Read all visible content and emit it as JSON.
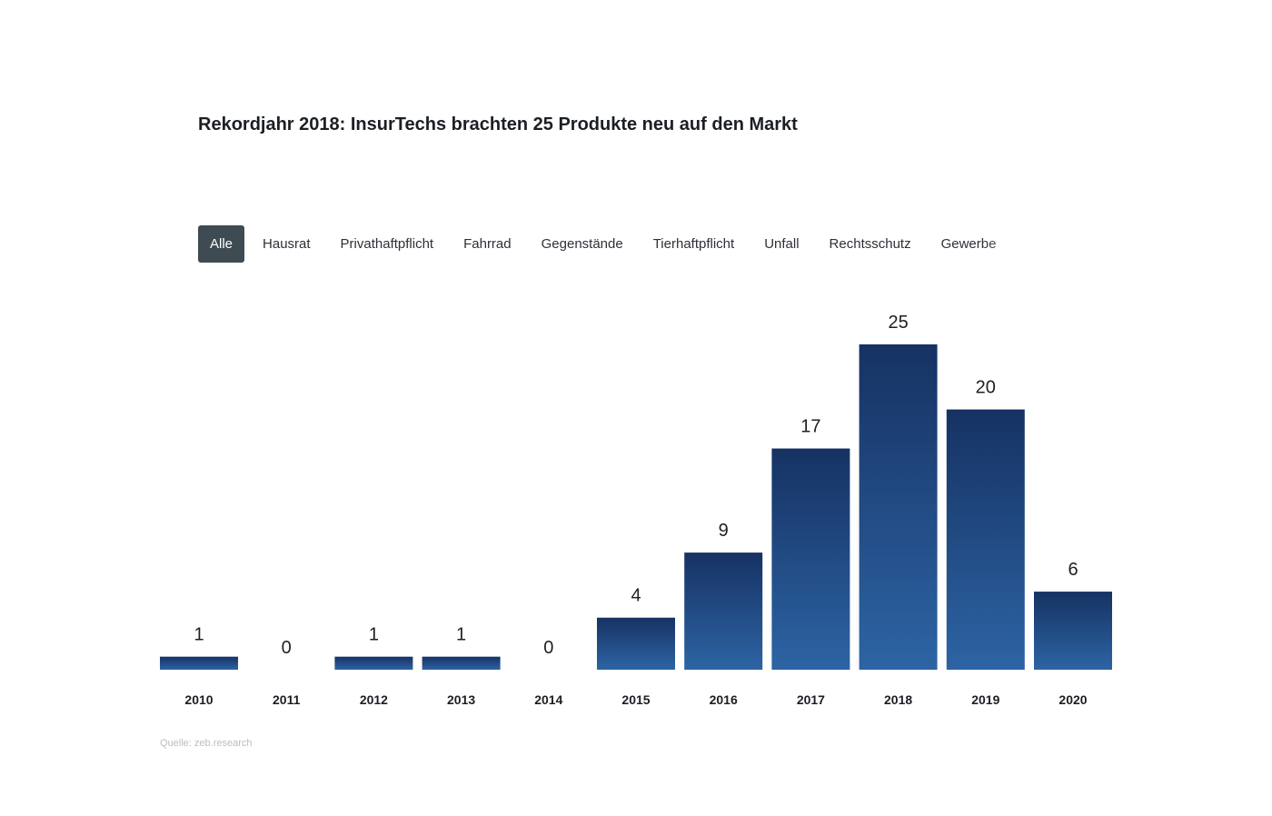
{
  "title": "Rekordjahr 2018: InsurTechs brachten 25 Produkte neu auf den Markt",
  "filters": [
    {
      "label": "Alle",
      "active": true
    },
    {
      "label": "Hausrat",
      "active": false
    },
    {
      "label": "Privathaftpflicht",
      "active": false
    },
    {
      "label": "Fahrrad",
      "active": false
    },
    {
      "label": "Gegenstände",
      "active": false
    },
    {
      "label": "Tierhaftpflicht",
      "active": false
    },
    {
      "label": "Unfall",
      "active": false
    },
    {
      "label": "Rechtsschutz",
      "active": false
    },
    {
      "label": "Gewerbe",
      "active": false
    }
  ],
  "source": "Quelle: zeb.research",
  "colors": {
    "bar_top": "#163263",
    "bar_bottom": "#2d64a4",
    "active_tab": "#3f4b52"
  },
  "chart_data": {
    "type": "bar",
    "title": "Rekordjahr 2018: InsurTechs brachten 25 Produkte neu auf den Markt",
    "xlabel": "",
    "ylabel": "",
    "categories": [
      "2010",
      "2011",
      "2012",
      "2013",
      "2014",
      "2015",
      "2016",
      "2017",
      "2018",
      "2019",
      "2020"
    ],
    "values": [
      1,
      0,
      1,
      1,
      0,
      4,
      9,
      17,
      25,
      20,
      6
    ],
    "ylim": [
      0,
      25
    ],
    "grid": false,
    "legend": "none",
    "data_labels": true
  }
}
